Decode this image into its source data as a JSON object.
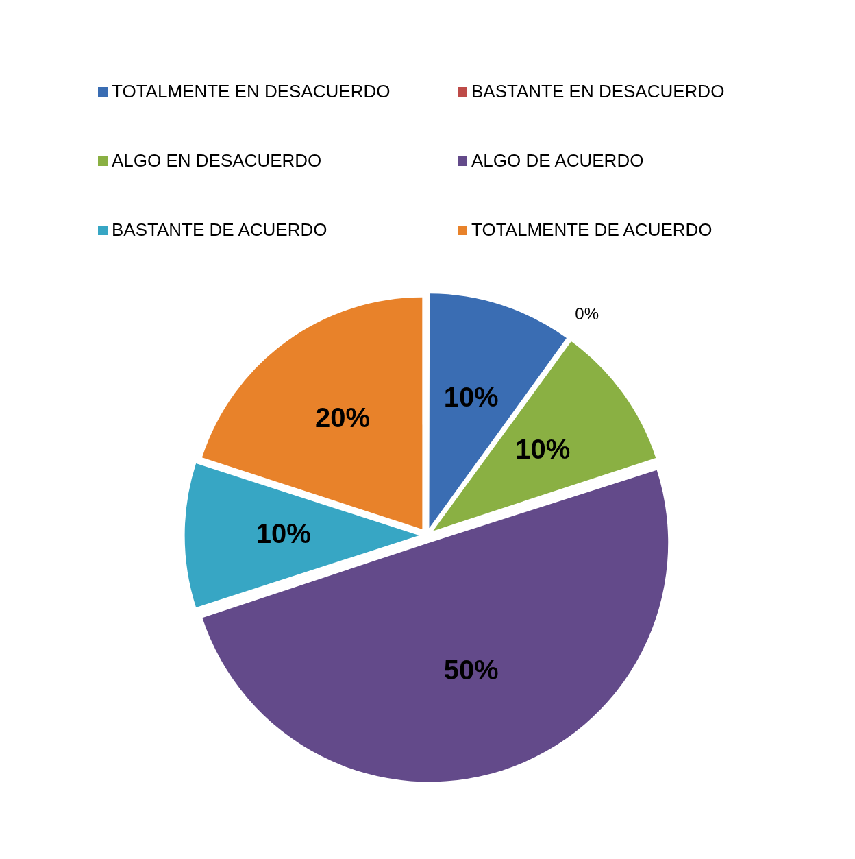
{
  "chart_data": {
    "type": "pie",
    "categories": [
      "TOTALMENTE EN DESACUERDO",
      "BASTANTE EN DESACUERDO",
      "ALGO EN DESACUERDO",
      "ALGO DE ACUERDO",
      "BASTANTE DE ACUERDO",
      "TOTALMENTE DE ACUERDO"
    ],
    "values": [
      10,
      0,
      10,
      50,
      10,
      20
    ],
    "colors": [
      "#3a6db3",
      "#be4b48",
      "#8ab043",
      "#634a8a",
      "#37a6c4",
      "#e8822a"
    ],
    "value_labels": [
      "10%",
      "0%",
      "10%",
      "50%",
      "10%",
      "20%"
    ],
    "legend": "top"
  }
}
